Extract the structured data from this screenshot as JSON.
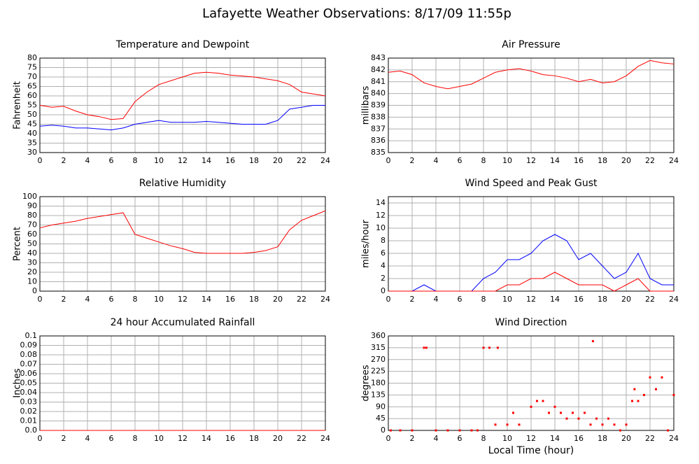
{
  "title": "Lafayette Weather Observations: 8/17/09 11:55p",
  "chart_data": [
    {
      "type": "line",
      "title": "Temperature and Dewpoint",
      "ylabel": "Fahrenheit",
      "x": [
        0,
        1,
        2,
        3,
        4,
        5,
        6,
        7,
        8,
        9,
        10,
        11,
        12,
        13,
        14,
        15,
        16,
        17,
        18,
        19,
        20,
        21,
        22,
        23,
        24
      ],
      "series": [
        {
          "color": "#ff0000",
          "values": [
            55,
            54,
            54.5,
            52,
            50,
            49,
            47.5,
            48,
            57,
            62,
            66,
            68,
            70,
            72,
            72.5,
            72,
            71,
            70.5,
            70,
            69,
            68,
            66,
            62,
            61,
            60
          ]
        },
        {
          "color": "#0000ff",
          "values": [
            44,
            44.5,
            44,
            43,
            43,
            42.5,
            42,
            43,
            45,
            46,
            47,
            46,
            46,
            46,
            46.5,
            46,
            45.5,
            45,
            45,
            45,
            47,
            53,
            54,
            55,
            55
          ]
        }
      ],
      "xlim": [
        0,
        24
      ],
      "xticks": [
        0,
        2,
        4,
        6,
        8,
        10,
        12,
        14,
        16,
        18,
        20,
        22,
        24
      ],
      "ylim": [
        30,
        80
      ],
      "yticks": [
        30,
        35,
        40,
        45,
        50,
        55,
        60,
        65,
        70,
        75,
        80
      ],
      "grid": true
    },
    {
      "type": "line",
      "title": "Air Pressure",
      "ylabel": "millibars",
      "x": [
        0,
        1,
        2,
        3,
        4,
        5,
        6,
        7,
        8,
        9,
        10,
        11,
        12,
        13,
        14,
        15,
        16,
        17,
        18,
        19,
        20,
        21,
        22,
        23,
        24
      ],
      "series": [
        {
          "color": "#ff0000",
          "values": [
            841.8,
            841.9,
            841.6,
            840.9,
            840.6,
            840.4,
            840.6,
            840.8,
            841.3,
            841.8,
            842.0,
            842.1,
            841.9,
            841.6,
            841.5,
            841.3,
            841.0,
            841.2,
            840.9,
            841.0,
            841.5,
            842.3,
            842.8,
            842.6,
            842.5
          ]
        }
      ],
      "xlim": [
        0,
        24
      ],
      "xticks": [
        0,
        2,
        4,
        6,
        8,
        10,
        12,
        14,
        16,
        18,
        20,
        22,
        24
      ],
      "ylim": [
        835,
        843
      ],
      "yticks": [
        835,
        836,
        837,
        838,
        839,
        840,
        841,
        842,
        843
      ],
      "grid": true
    },
    {
      "type": "line",
      "title": "Relative Humidity",
      "ylabel": "Percent",
      "x": [
        0,
        1,
        2,
        3,
        4,
        5,
        6,
        7,
        8,
        9,
        10,
        11,
        12,
        13,
        14,
        15,
        16,
        17,
        18,
        19,
        20,
        21,
        22,
        23,
        24
      ],
      "series": [
        {
          "color": "#ff0000",
          "values": [
            67,
            70,
            72,
            74,
            77,
            79,
            81,
            83,
            60,
            56,
            52,
            48,
            45,
            41,
            40,
            40,
            40,
            40,
            41,
            43,
            47,
            65,
            75,
            80,
            85
          ]
        }
      ],
      "xlim": [
        0,
        24
      ],
      "xticks": [
        0,
        2,
        4,
        6,
        8,
        10,
        12,
        14,
        16,
        18,
        20,
        22,
        24
      ],
      "ylim": [
        0,
        100
      ],
      "yticks": [
        0,
        10,
        20,
        30,
        40,
        50,
        60,
        70,
        80,
        90,
        100
      ],
      "grid": true
    },
    {
      "type": "line",
      "title": "Wind Speed and Peak Gust",
      "ylabel": "miles/hour",
      "x": [
        0,
        1,
        2,
        3,
        4,
        5,
        6,
        7,
        8,
        9,
        10,
        11,
        12,
        13,
        14,
        15,
        16,
        17,
        18,
        19,
        20,
        21,
        22,
        23,
        24
      ],
      "series": [
        {
          "color": "#0000ff",
          "values": [
            0,
            0,
            0,
            1,
            0,
            0,
            0,
            0,
            2,
            3,
            5,
            5,
            6,
            8,
            9,
            8,
            5,
            6,
            4,
            2,
            3,
            6,
            2,
            1,
            1
          ]
        },
        {
          "color": "#ff0000",
          "values": [
            0,
            0,
            0,
            0,
            0,
            0,
            0,
            0,
            0,
            0,
            1,
            1,
            2,
            2,
            3,
            2,
            1,
            1,
            1,
            0,
            1,
            2,
            0,
            0,
            0
          ]
        }
      ],
      "xlim": [
        0,
        24
      ],
      "xticks": [
        0,
        2,
        4,
        6,
        8,
        10,
        12,
        14,
        16,
        18,
        20,
        22,
        24
      ],
      "ylim": [
        0,
        15
      ],
      "yticks": [
        0,
        2,
        4,
        6,
        8,
        10,
        12,
        14
      ],
      "grid": true
    },
    {
      "type": "line",
      "title": "24 hour Accumulated Rainfall",
      "ylabel": "Inches",
      "x": [
        0,
        24
      ],
      "series": [
        {
          "color": "#ff0000",
          "values": [
            0,
            0
          ]
        }
      ],
      "xlim": [
        0,
        24
      ],
      "xticks": [
        0,
        2,
        4,
        6,
        8,
        10,
        12,
        14,
        16,
        18,
        20,
        22,
        24
      ],
      "ylim": [
        0,
        0.1
      ],
      "yticks": [
        {
          "value": 0,
          "label": "0.0"
        },
        0.01,
        0.02,
        0.03,
        0.04,
        0.05,
        0.06,
        0.07,
        0.08,
        0.09,
        0.1
      ],
      "grid": true
    },
    {
      "type": "scatter",
      "title": "Wind Direction",
      "ylabel": "degrees",
      "xlabel": "Local Time (hour)",
      "x": [
        0.2,
        1,
        2,
        3,
        3.2,
        4,
        5,
        6,
        7,
        7.5,
        8,
        8.5,
        9,
        9.2,
        10,
        10.5,
        11,
        12,
        12.5,
        13,
        13.5,
        14,
        14.5,
        15,
        15.5,
        16,
        16.5,
        17,
        17.2,
        17.5,
        18,
        18.5,
        19,
        19.5,
        20,
        20.5,
        20.7,
        21,
        21.5,
        22,
        22.5,
        23,
        23.5,
        24
      ],
      "values": [
        0,
        0,
        0,
        315,
        315,
        0,
        0,
        0,
        0,
        0,
        315,
        315,
        22,
        315,
        22,
        67,
        22,
        90,
        112,
        112,
        67,
        90,
        67,
        45,
        67,
        45,
        67,
        22,
        340,
        45,
        22,
        45,
        22,
        0,
        22,
        112,
        157,
        112,
        135,
        202,
        157,
        202,
        0,
        135
      ],
      "color": "#ff0000",
      "xlim": [
        0,
        24
      ],
      "xticks": [
        0,
        2,
        4,
        6,
        8,
        10,
        12,
        14,
        16,
        18,
        20,
        22,
        24
      ],
      "ylim": [
        0,
        360
      ],
      "yticks": [
        0,
        45,
        90,
        135,
        180,
        225,
        270,
        315,
        360
      ],
      "grid": true
    }
  ]
}
